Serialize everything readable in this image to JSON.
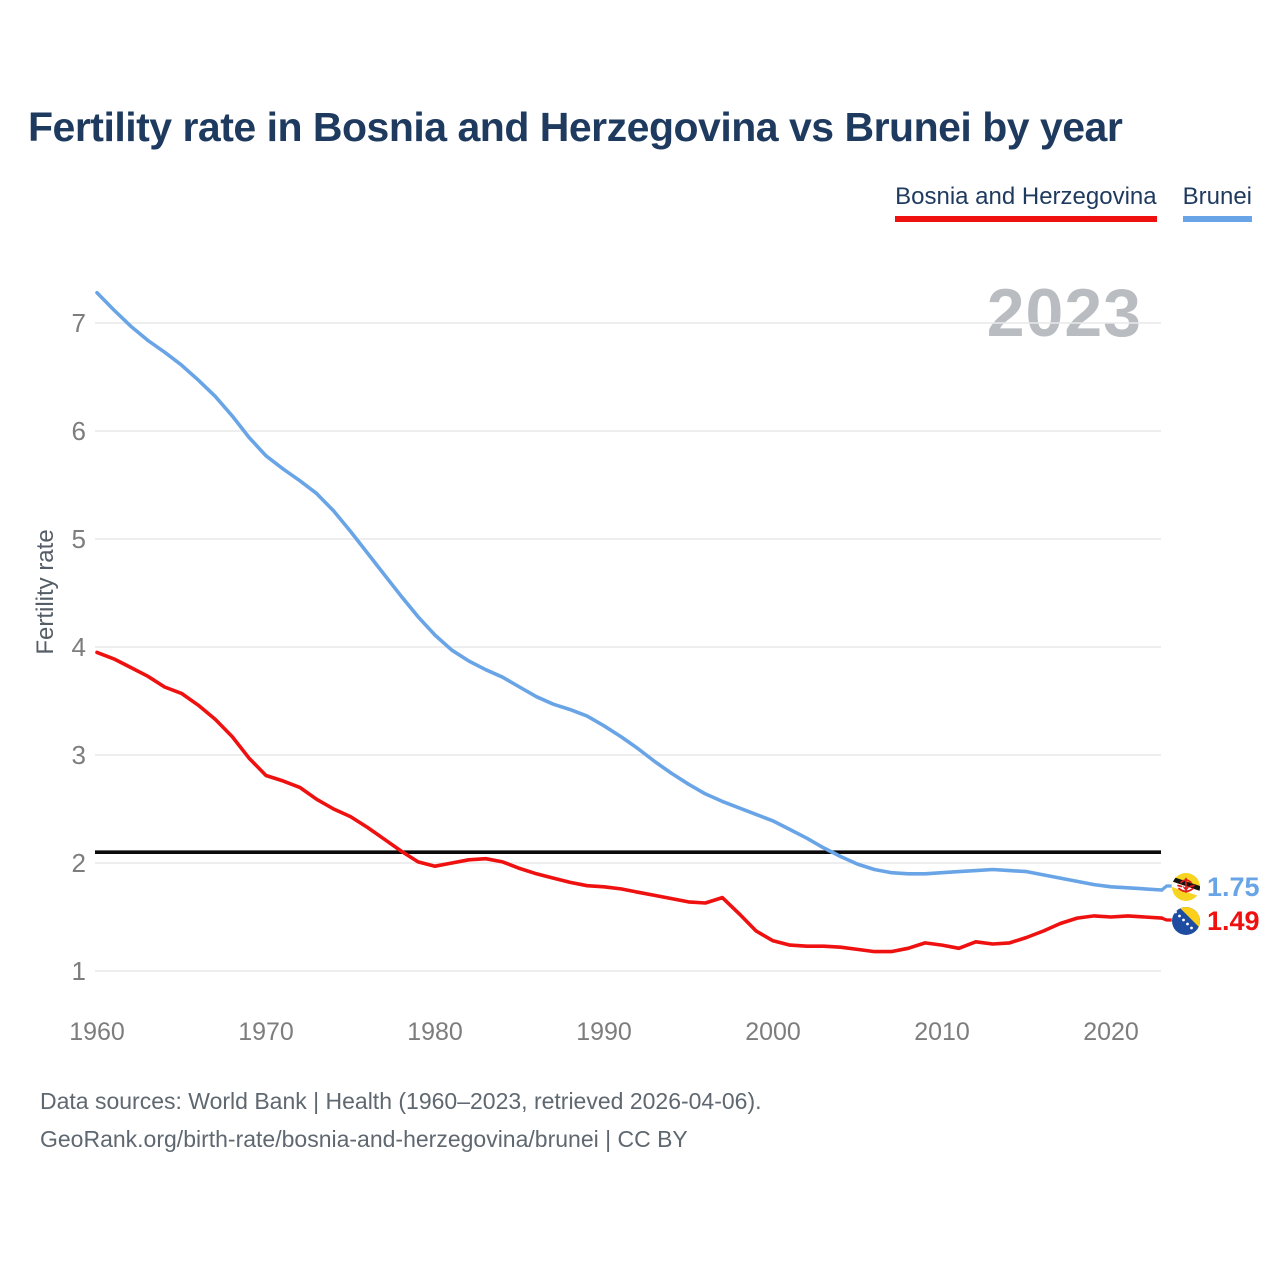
{
  "title": "Fertility rate in Bosnia and Herzegovina vs Brunei by year",
  "watermark": "2023",
  "legend": {
    "items": [
      {
        "label": "Bosnia and Herzegovina",
        "color": "#ef1010"
      },
      {
        "label": "Brunei",
        "color": "#69a5e6"
      }
    ]
  },
  "end_labels": [
    {
      "country": "Brunei",
      "value": "1.75",
      "color": "#69a5e6",
      "flag_icon": "brunei-flag"
    },
    {
      "country": "Bosnia and Herzegovina",
      "value": "1.49",
      "color": "#ef1010",
      "flag_icon": "bosnia-and-herzegovina-flag"
    }
  ],
  "footer": {
    "line1": "Data sources: World Bank | Health (1960–2023, retrieved 2026-04-06).",
    "line2": "GeoRank.org/birth-rate/bosnia-and-herzegovina/brunei | CC BY"
  },
  "chart_data": {
    "type": "line",
    "title": "Fertility rate in Bosnia and Herzegovina vs Brunei by year",
    "xlabel": "",
    "ylabel": "Fertility rate",
    "xlim": [
      1960,
      2023
    ],
    "ylim": [
      0.75,
      7.45
    ],
    "x_ticks": [
      1960,
      1970,
      1980,
      1990,
      2000,
      2010,
      2020
    ],
    "y_ticks": [
      1,
      2,
      3,
      4,
      5,
      6,
      7
    ],
    "grid": "horizontal",
    "legend_position": "top-right",
    "reference_line": {
      "value": 2.1,
      "color": "#0b0b0b"
    },
    "x": [
      1960,
      1961,
      1962,
      1963,
      1964,
      1965,
      1966,
      1967,
      1968,
      1969,
      1970,
      1971,
      1972,
      1973,
      1974,
      1975,
      1976,
      1977,
      1978,
      1979,
      1980,
      1981,
      1982,
      1983,
      1984,
      1985,
      1986,
      1987,
      1988,
      1989,
      1990,
      1991,
      1992,
      1993,
      1994,
      1995,
      1996,
      1997,
      1998,
      1999,
      2000,
      2001,
      2002,
      2003,
      2004,
      2005,
      2006,
      2007,
      2008,
      2009,
      2010,
      2011,
      2012,
      2013,
      2014,
      2015,
      2016,
      2017,
      2018,
      2019,
      2020,
      2021,
      2022,
      2023
    ],
    "series": [
      {
        "name": "Brunei",
        "color": "#69a5e6",
        "end_value": 1.75,
        "values": [
          7.28,
          7.12,
          6.97,
          6.84,
          6.73,
          6.61,
          6.47,
          6.32,
          6.14,
          5.94,
          5.77,
          5.65,
          5.54,
          5.42,
          5.26,
          5.07,
          4.87,
          4.67,
          4.47,
          4.28,
          4.11,
          3.97,
          3.87,
          3.79,
          3.72,
          3.63,
          3.54,
          3.47,
          3.42,
          3.36,
          3.27,
          3.17,
          3.06,
          2.94,
          2.83,
          2.73,
          2.64,
          2.57,
          2.51,
          2.45,
          2.39,
          2.31,
          2.23,
          2.14,
          2.06,
          1.99,
          1.94,
          1.91,
          1.9,
          1.9,
          1.91,
          1.92,
          1.93,
          1.94,
          1.93,
          1.92,
          1.89,
          1.86,
          1.83,
          1.8,
          1.78,
          1.77,
          1.76,
          1.75
        ]
      },
      {
        "name": "Bosnia and Herzegovina",
        "color": "#ef1010",
        "end_value": 1.49,
        "values": [
          3.95,
          3.89,
          3.81,
          3.73,
          3.63,
          3.57,
          3.46,
          3.33,
          3.17,
          2.97,
          2.81,
          2.76,
          2.7,
          2.59,
          2.5,
          2.43,
          2.33,
          2.22,
          2.11,
          2.01,
          1.97,
          2.0,
          2.03,
          2.04,
          2.01,
          1.95,
          1.9,
          1.86,
          1.82,
          1.79,
          1.78,
          1.76,
          1.73,
          1.7,
          1.67,
          1.64,
          1.63,
          1.68,
          1.53,
          1.37,
          1.28,
          1.24,
          1.23,
          1.23,
          1.22,
          1.2,
          1.18,
          1.18,
          1.21,
          1.26,
          1.24,
          1.21,
          1.27,
          1.25,
          1.26,
          1.31,
          1.37,
          1.44,
          1.49,
          1.51,
          1.5,
          1.51,
          1.5,
          1.49
        ]
      }
    ]
  }
}
